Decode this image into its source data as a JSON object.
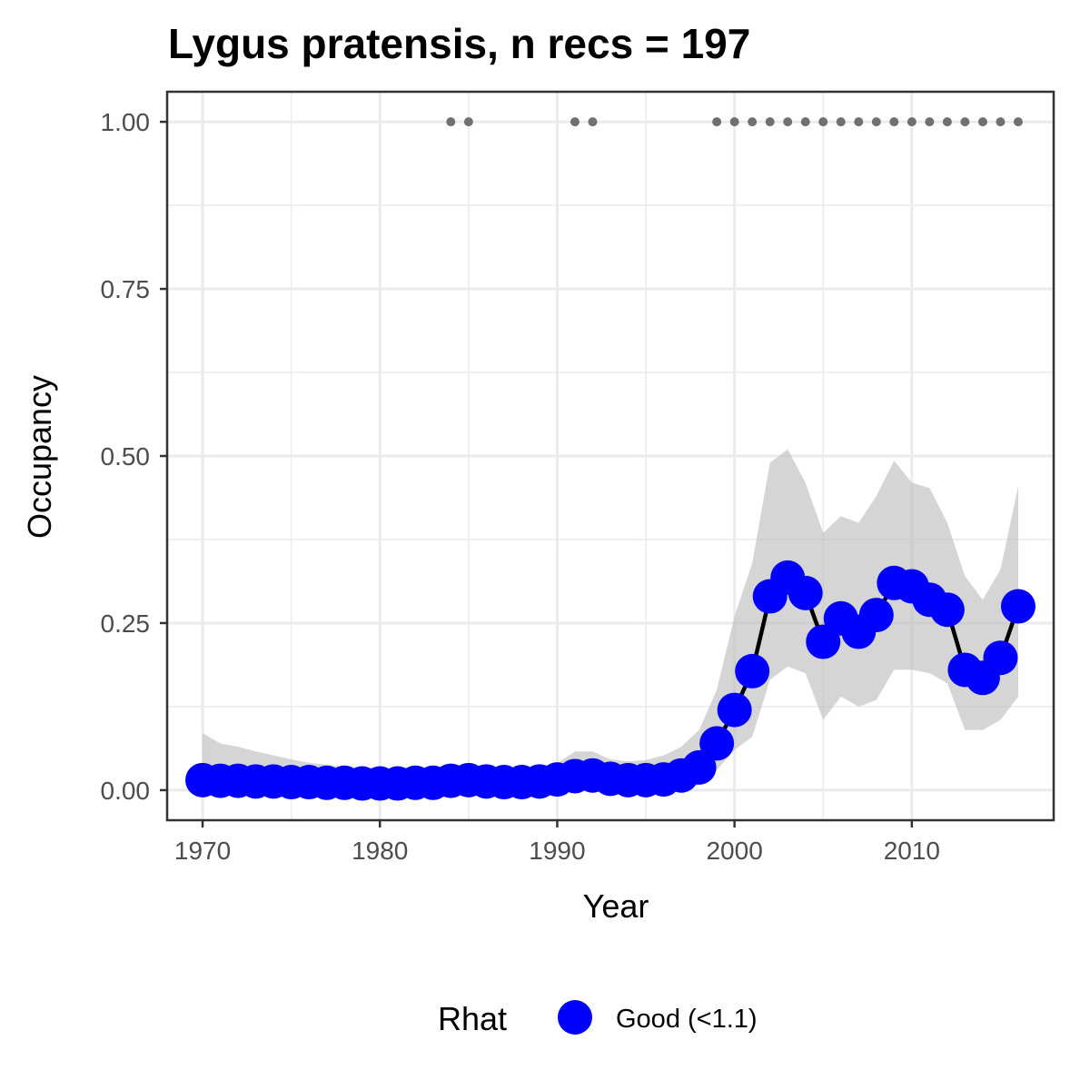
{
  "chart_data": {
    "type": "line",
    "title": "Lygus pratensis, n recs = 197",
    "xlabel": "Year",
    "ylabel": "Occupancy",
    "xlim": [
      1968,
      2018
    ],
    "ylim": [
      -0.045,
      1.045
    ],
    "x_ticks": [
      1970,
      1980,
      1990,
      2000,
      2010
    ],
    "y_ticks": [
      0,
      0.25,
      0.5,
      0.75,
      1
    ],
    "x_tick_labels": [
      "1970",
      "1980",
      "1990",
      "2000",
      "2010"
    ],
    "y_tick_labels": [
      "0.00",
      "0.25",
      "0.50",
      "0.75",
      "1.00"
    ],
    "grid": true,
    "legend_position": "bottom",
    "legend": {
      "title": "Rhat",
      "items": [
        {
          "label": "Good (<1.1)",
          "color": "#0000ff"
        }
      ]
    },
    "colors": {
      "points": "#0000ff",
      "line": "#000000",
      "ribbon": "#bfbfbf",
      "record_dots": "#707070",
      "grid": "#ebebeb",
      "panel_border": "#333333"
    },
    "series": [
      {
        "x": [
          1970,
          1971,
          1972,
          1973,
          1974,
          1975,
          1976,
          1977,
          1978,
          1979,
          1980,
          1981,
          1982,
          1983,
          1984,
          1985,
          1986,
          1987,
          1988,
          1989,
          1990,
          1991,
          1992,
          1993,
          1994,
          1995,
          1996,
          1997,
          1998,
          1999,
          2000,
          2001,
          2002,
          2003,
          2004,
          2005,
          2006,
          2007,
          2008,
          2009,
          2010,
          2011,
          2012,
          2013,
          2014,
          2015,
          2016
        ],
        "values": [
          0.015,
          0.014,
          0.014,
          0.013,
          0.013,
          0.012,
          0.012,
          0.011,
          0.011,
          0.01,
          0.01,
          0.01,
          0.011,
          0.011,
          0.014,
          0.015,
          0.013,
          0.012,
          0.012,
          0.013,
          0.016,
          0.021,
          0.022,
          0.017,
          0.015,
          0.015,
          0.016,
          0.022,
          0.034,
          0.07,
          0.12,
          0.178,
          0.29,
          0.318,
          0.295,
          0.222,
          0.257,
          0.237,
          0.262,
          0.31,
          0.305,
          0.285,
          0.27,
          0.18,
          0.168,
          0.198,
          0.275
        ],
        "lower": [
          0.001,
          0.001,
          0.001,
          0.001,
          0.001,
          0.001,
          0.001,
          0.001,
          0.001,
          0.001,
          0.001,
          0.001,
          0.001,
          0.001,
          0.001,
          0.001,
          0.001,
          0.001,
          0.001,
          0.001,
          0.001,
          0.002,
          0.002,
          0.001,
          0.001,
          0.001,
          0.001,
          0.002,
          0.008,
          0.03,
          0.06,
          0.08,
          0.165,
          0.185,
          0.175,
          0.105,
          0.14,
          0.125,
          0.135,
          0.18,
          0.18,
          0.175,
          0.16,
          0.09,
          0.09,
          0.105,
          0.14
        ],
        "upper": [
          0.085,
          0.07,
          0.065,
          0.058,
          0.052,
          0.046,
          0.041,
          0.038,
          0.035,
          0.034,
          0.033,
          0.033,
          0.034,
          0.035,
          0.036,
          0.038,
          0.036,
          0.034,
          0.033,
          0.034,
          0.04,
          0.058,
          0.058,
          0.046,
          0.043,
          0.045,
          0.052,
          0.065,
          0.09,
          0.15,
          0.26,
          0.34,
          0.49,
          0.51,
          0.46,
          0.385,
          0.41,
          0.4,
          0.44,
          0.493,
          0.46,
          0.452,
          0.4,
          0.32,
          0.285,
          0.33,
          0.455
        ]
      }
    ],
    "record_years": [
      1984,
      1985,
      1991,
      1992,
      1999,
      2000,
      2001,
      2002,
      2003,
      2004,
      2005,
      2006,
      2007,
      2008,
      2009,
      2010,
      2011,
      2012,
      2013,
      2014,
      2015,
      2016
    ],
    "record_value": 1.0
  }
}
